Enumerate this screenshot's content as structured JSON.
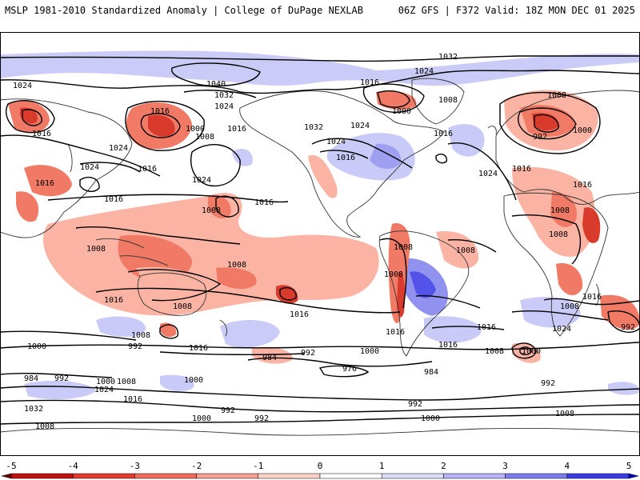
{
  "header": {
    "left": "MSLP 1981-2010 Standardized Anomaly | College of DuPage NEXLAB",
    "right": "06Z GFS | F372 Valid: 18Z MON DEC 01 2025"
  },
  "map": {
    "variable": "MSLP standardized anomaly",
    "isobar_labels": [
      "1032",
      "1024",
      "1040",
      "1016",
      "1000",
      "1008",
      "992",
      "984",
      "976"
    ],
    "colors": {
      "ocean": "#ffffff",
      "coast": "#333333",
      "isobar": "#000000",
      "neg_light": "#fbb4a4",
      "neg_mid": "#f07a66",
      "neg_strong": "#d83a2c",
      "pos_light": "#c8c8f8",
      "pos_mid": "#8c8cf0",
      "pos_strong": "#4a4ae8"
    }
  },
  "colorbar": {
    "ticks": [
      "-5",
      "-4",
      "-3",
      "-2",
      "-1",
      "0",
      "1",
      "2",
      "3",
      "4",
      "5"
    ],
    "values": [
      -5,
      -4,
      -3,
      -2,
      -1,
      0,
      1,
      2,
      3,
      4,
      5
    ],
    "range": [
      -5,
      5
    ],
    "colors": [
      "#6b0000",
      "#c01010",
      "#e03a30",
      "#ef6b5a",
      "#f7a090",
      "#fbd2c8",
      "#ffffff",
      "#dcdcfc",
      "#b4b4f6",
      "#7c7cee",
      "#3c3ce4",
      "#0000c0"
    ]
  }
}
